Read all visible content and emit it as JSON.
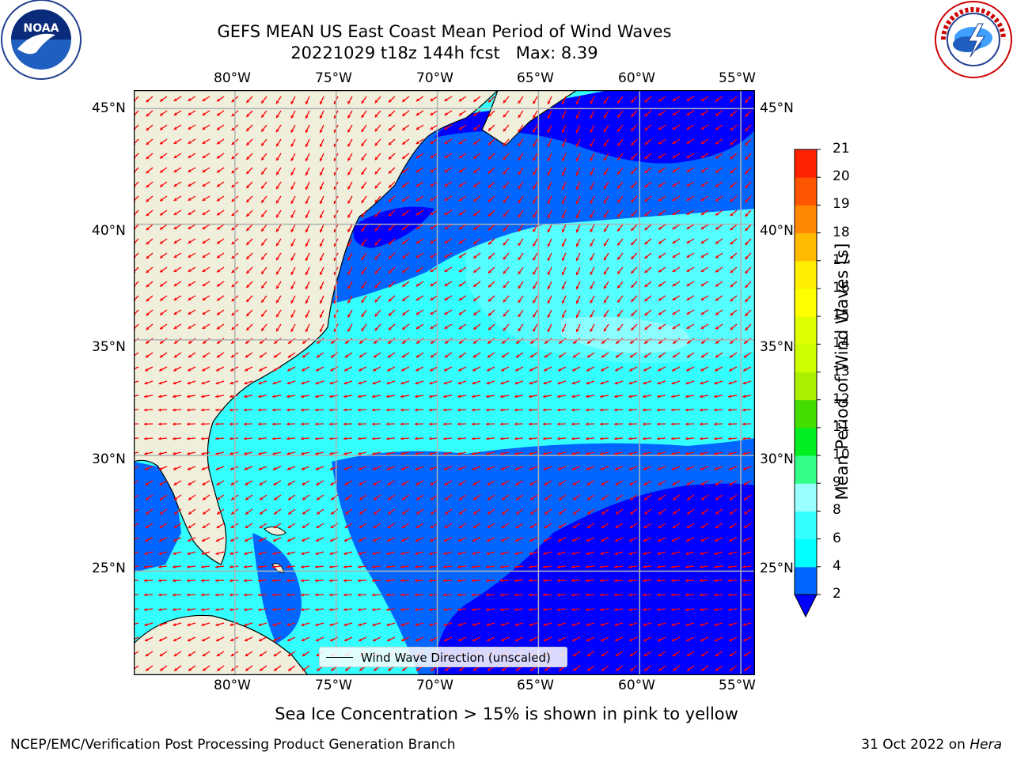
{
  "title": {
    "line1": "GEFS MEAN US East Coast Mean Period of Wind Waves",
    "line2": "20221029 t18z 144h fcst   Max: 8.39"
  },
  "logos": {
    "left": {
      "name": "noaa-logo",
      "text": "NOAA",
      "ring_text": "NATIONAL OCEANIC AND ATMOSPHERIC ADMINISTRATION · U.S. DEPARTMENT OF COMMERCE"
    },
    "right": {
      "name": "nws-logo",
      "ring_text": "NATIONAL WEATHER SERVICE"
    }
  },
  "map": {
    "lon_labels": [
      "80°W",
      "75°W",
      "70°W",
      "65°W",
      "60°W",
      "55°W"
    ],
    "lat_labels": [
      "45°N",
      "40°N",
      "35°N",
      "30°N",
      "25°N"
    ],
    "lon_values": [
      -80,
      -75,
      -70,
      -65,
      -60,
      -55
    ],
    "lat_values": [
      45,
      40,
      35,
      30,
      25
    ],
    "extent": {
      "lon": [
        -85,
        -54.3
      ],
      "lat": [
        20.5,
        45.8
      ]
    },
    "gridlines": true,
    "land_color": "#efefdc",
    "coastline_color": "#000000",
    "arrow_color": "#ff0000",
    "legend_label": "Wind Wave Direction (unscaled)"
  },
  "colorbar": {
    "label": "Mean Period of Wind Waves [s]",
    "ticks": [
      "2",
      "4",
      "6",
      "8",
      "9",
      "10",
      "11",
      "12",
      "13",
      "14",
      "15",
      "16",
      "17",
      "18",
      "19",
      "20",
      "21"
    ],
    "colors": [
      "#0066ff",
      "#00ffff",
      "#33ffff",
      "#99ffff",
      "#33ff88",
      "#00ee22",
      "#44dd00",
      "#aaee00",
      "#ccff00",
      "#ddff00",
      "#ffff00",
      "#ffee00",
      "#ffbb00",
      "#ff8800",
      "#ff5500",
      "#ff2200"
    ],
    "under_color": "#0000ff",
    "extend": "min"
  },
  "caption": "Sea Ice Concentration > 15% is shown in pink to yellow",
  "footer": {
    "left": "NCEP/EMC/Verification Post Processing Product Generation Branch",
    "right_date": "31 Oct 2022 on ",
    "right_machine": "Hera"
  }
}
